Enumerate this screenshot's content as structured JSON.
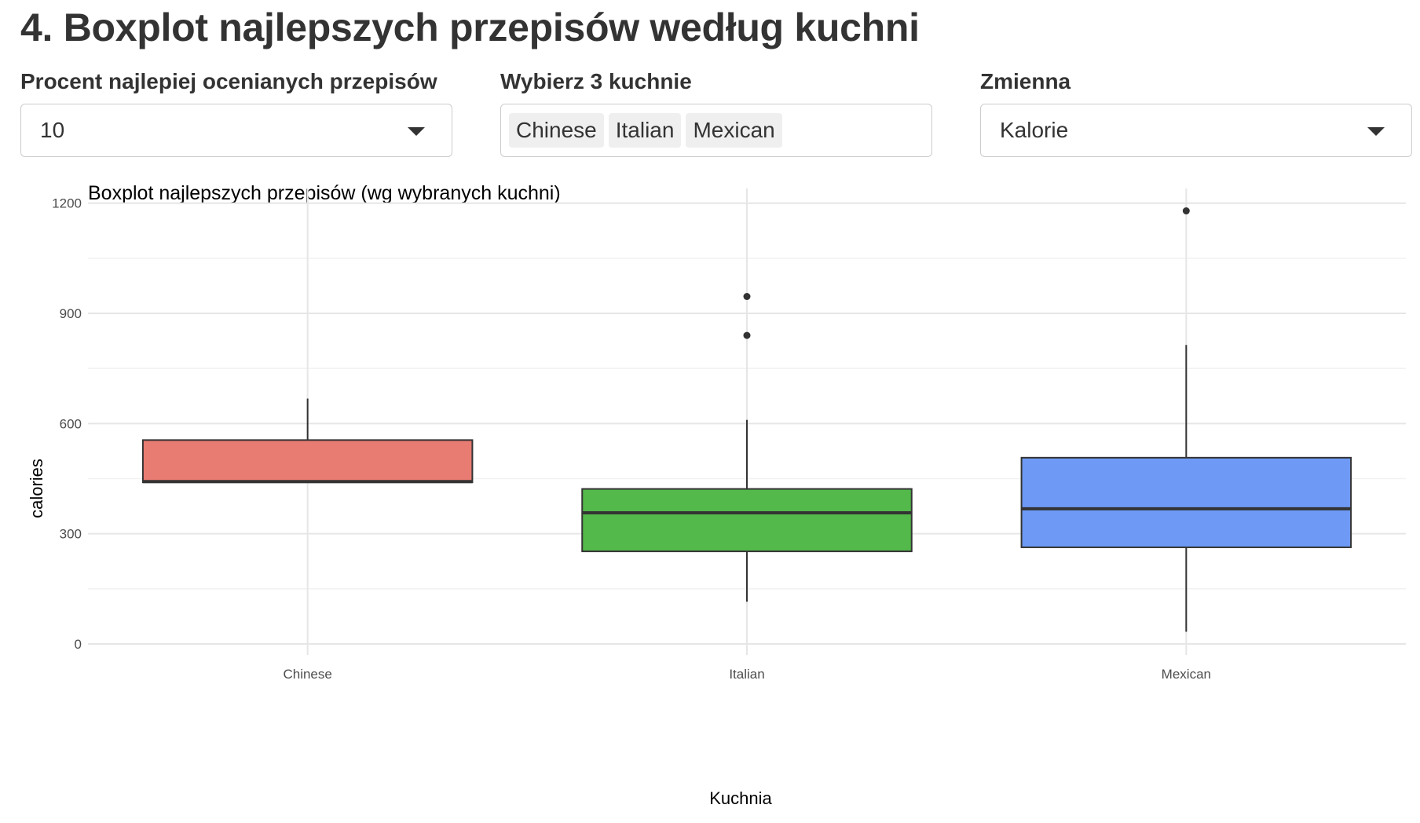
{
  "page": {
    "title": "4. Boxplot najlepszych przepisów według kuchni"
  },
  "controls": {
    "percent": {
      "label": "Procent najlepiej ocenianych przepisów",
      "value": "10"
    },
    "cuisines": {
      "label": "Wybierz 3 kuchnie",
      "selected": [
        "Chinese",
        "Italian",
        "Mexican"
      ]
    },
    "variable": {
      "label": "Zmienna",
      "value": "Kalorie"
    }
  },
  "chart_data": {
    "type": "boxplot",
    "title": "Boxplot najlepszych przepisów (wg wybranych kuchni)",
    "xlabel": "Kuchnia",
    "ylabel": "calories",
    "ylim": [
      -30,
      1240
    ],
    "yticks": [
      0,
      300,
      600,
      900,
      1200
    ],
    "grid": true,
    "categories": [
      "Chinese",
      "Italian",
      "Mexican"
    ],
    "colors": [
      "#E87B72",
      "#53B94A",
      "#6E9AF6"
    ],
    "boxes": [
      {
        "category": "Chinese",
        "whisker_low": 440,
        "q1": 440,
        "median": 442,
        "q3": 555,
        "whisker_high": 668,
        "outliers": []
      },
      {
        "category": "Italian",
        "whisker_low": 115,
        "q1": 252,
        "median": 357,
        "q3": 422,
        "whisker_high": 610,
        "outliers": [
          840,
          946
        ]
      },
      {
        "category": "Mexican",
        "whisker_low": 33,
        "q1": 263,
        "median": 368,
        "q3": 507,
        "whisker_high": 814,
        "outliers": [
          1179
        ]
      }
    ]
  }
}
